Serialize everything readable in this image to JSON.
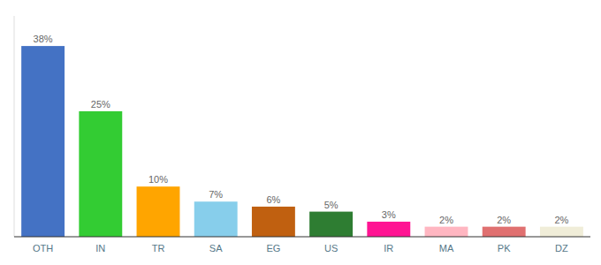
{
  "chart_data": {
    "type": "bar",
    "categories": [
      "OTH",
      "IN",
      "TR",
      "SA",
      "EG",
      "US",
      "IR",
      "MA",
      "PK",
      "DZ"
    ],
    "values": [
      38,
      25,
      10,
      7,
      6,
      5,
      3,
      2,
      2,
      2
    ],
    "value_labels": [
      "38%",
      "25%",
      "10%",
      "7%",
      "6%",
      "5%",
      "3%",
      "2%",
      "2%",
      "2%"
    ],
    "colors": [
      "#4472C4",
      "#33CC33",
      "#FFA500",
      "#87CEEB",
      "#C06010",
      "#2E7D32",
      "#FF1493",
      "#FFB6C1",
      "#E07070",
      "#F0EDD8"
    ],
    "ylim": [
      0,
      44
    ],
    "data_labels": true,
    "tick_labels": "x",
    "grid": false
  }
}
